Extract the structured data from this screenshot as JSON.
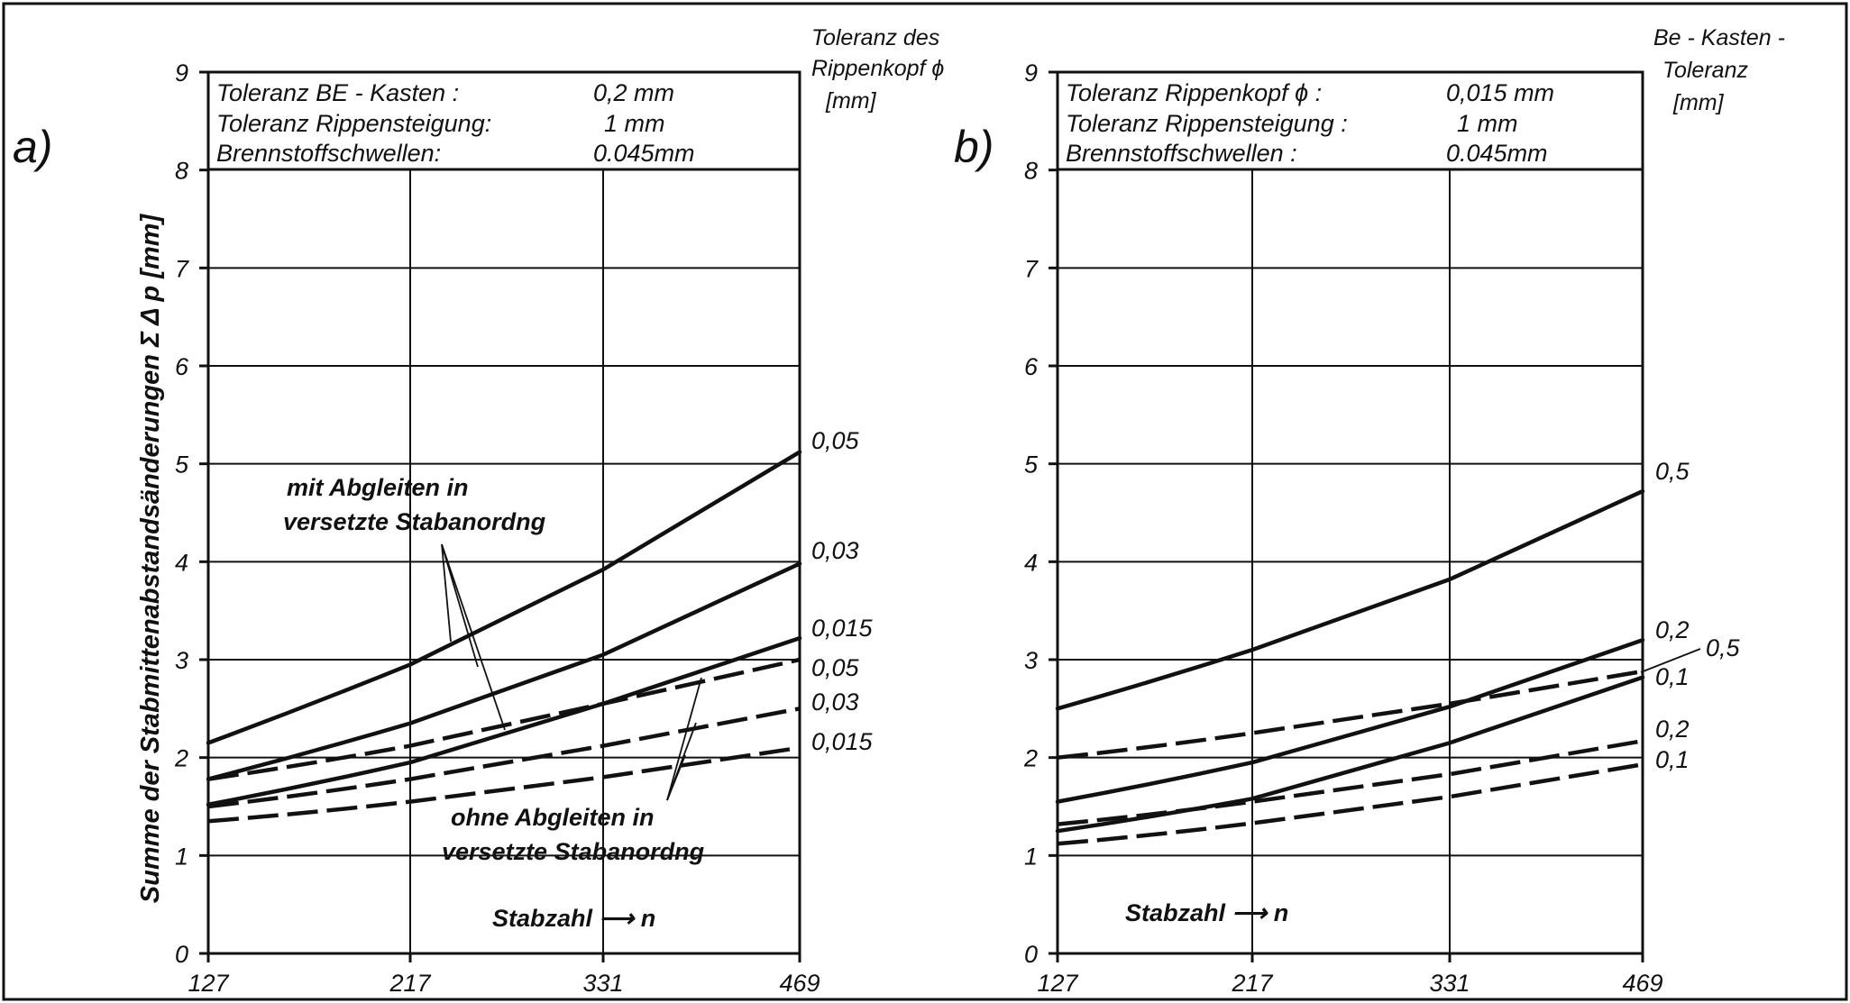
{
  "figure_border": true,
  "chart_data": [
    {
      "type": "line",
      "panel_label": "a)",
      "ylabel": "Summe der Stabmittenabstandsänderungen Σ Δ p [mm]",
      "xlabel": "Stabzahl ⟶ n",
      "x_ticks": [
        127,
        217,
        331,
        469
      ],
      "y_ticks": [
        0,
        1,
        2,
        3,
        4,
        5,
        6,
        7,
        8,
        9
      ],
      "ylim": [
        0,
        9
      ],
      "grid": true,
      "info_box": [
        {
          "label": "Toleranz  BE - Kasten :",
          "value": "0,2 mm"
        },
        {
          "label": "Toleranz Rippensteigung:",
          "value": "1  mm"
        },
        {
          "label": "Brennstoffschwellen:",
          "value": "0.045mm"
        }
      ],
      "side_title": [
        "Toleranz des",
        "Rippenkopf ϕ",
        "[mm]"
      ],
      "annotation_solid": [
        "mit Abgleiten in",
        "versetzte Stabanordng"
      ],
      "annotation_dashed": [
        "ohne Abgleiten in",
        "versetzte Stabanordng"
      ],
      "series": [
        {
          "name": "0,05",
          "style": "solid",
          "x": [
            127,
            217,
            331,
            469
          ],
          "y": [
            2.15,
            2.95,
            3.92,
            5.12
          ]
        },
        {
          "name": "0,03",
          "style": "solid",
          "x": [
            127,
            217,
            331,
            469
          ],
          "y": [
            1.78,
            2.35,
            3.05,
            3.98
          ]
        },
        {
          "name": "0,015",
          "style": "solid",
          "x": [
            127,
            217,
            331,
            469
          ],
          "y": [
            1.52,
            1.95,
            2.55,
            3.22
          ]
        },
        {
          "name": "0,05",
          "style": "dashed",
          "x": [
            127,
            217,
            331,
            469
          ],
          "y": [
            1.78,
            2.12,
            2.55,
            3.0
          ]
        },
        {
          "name": "0,03",
          "style": "dashed",
          "x": [
            127,
            217,
            331,
            469
          ],
          "y": [
            1.5,
            1.78,
            2.12,
            2.5
          ]
        },
        {
          "name": "0,015",
          "style": "dashed",
          "x": [
            127,
            217,
            331,
            469
          ],
          "y": [
            1.35,
            1.55,
            1.8,
            2.1
          ]
        }
      ]
    },
    {
      "type": "line",
      "panel_label": "b)",
      "xlabel": "Stabzahl ⟶ n",
      "x_ticks": [
        127,
        217,
        331,
        469
      ],
      "y_ticks": [
        0,
        1,
        2,
        3,
        4,
        5,
        6,
        7,
        8,
        9
      ],
      "ylim": [
        0,
        9
      ],
      "grid": true,
      "info_box": [
        {
          "label": "Toleranz  Rippenkopf ϕ :",
          "value": "0,015 mm"
        },
        {
          "label": "Toleranz Rippensteigung :",
          "value": "1  mm"
        },
        {
          "label": "Brennstoffschwellen :",
          "value": "0.045mm"
        }
      ],
      "side_title": [
        "Be - Kasten -",
        "Toleranz",
        "[mm]"
      ],
      "series": [
        {
          "name": "0,5",
          "style": "solid",
          "x": [
            127,
            217,
            331,
            469
          ],
          "y": [
            2.5,
            3.1,
            3.82,
            4.72
          ]
        },
        {
          "name": "0,2",
          "style": "solid",
          "x": [
            127,
            217,
            331,
            469
          ],
          "y": [
            1.55,
            1.95,
            2.52,
            3.2
          ]
        },
        {
          "name": "0,1",
          "style": "solid",
          "x": [
            127,
            217,
            331,
            469
          ],
          "y": [
            1.25,
            1.58,
            2.15,
            2.82
          ]
        },
        {
          "name": "0,5",
          "style": "dashed",
          "x": [
            127,
            217,
            331,
            469
          ],
          "y": [
            2.0,
            2.25,
            2.55,
            2.88
          ]
        },
        {
          "name": "0,2",
          "style": "dashed",
          "x": [
            127,
            217,
            331,
            469
          ],
          "y": [
            1.32,
            1.55,
            1.83,
            2.17
          ]
        },
        {
          "name": "0,1",
          "style": "dashed",
          "x": [
            127,
            217,
            331,
            469
          ],
          "y": [
            1.12,
            1.33,
            1.6,
            1.93
          ]
        }
      ]
    }
  ]
}
